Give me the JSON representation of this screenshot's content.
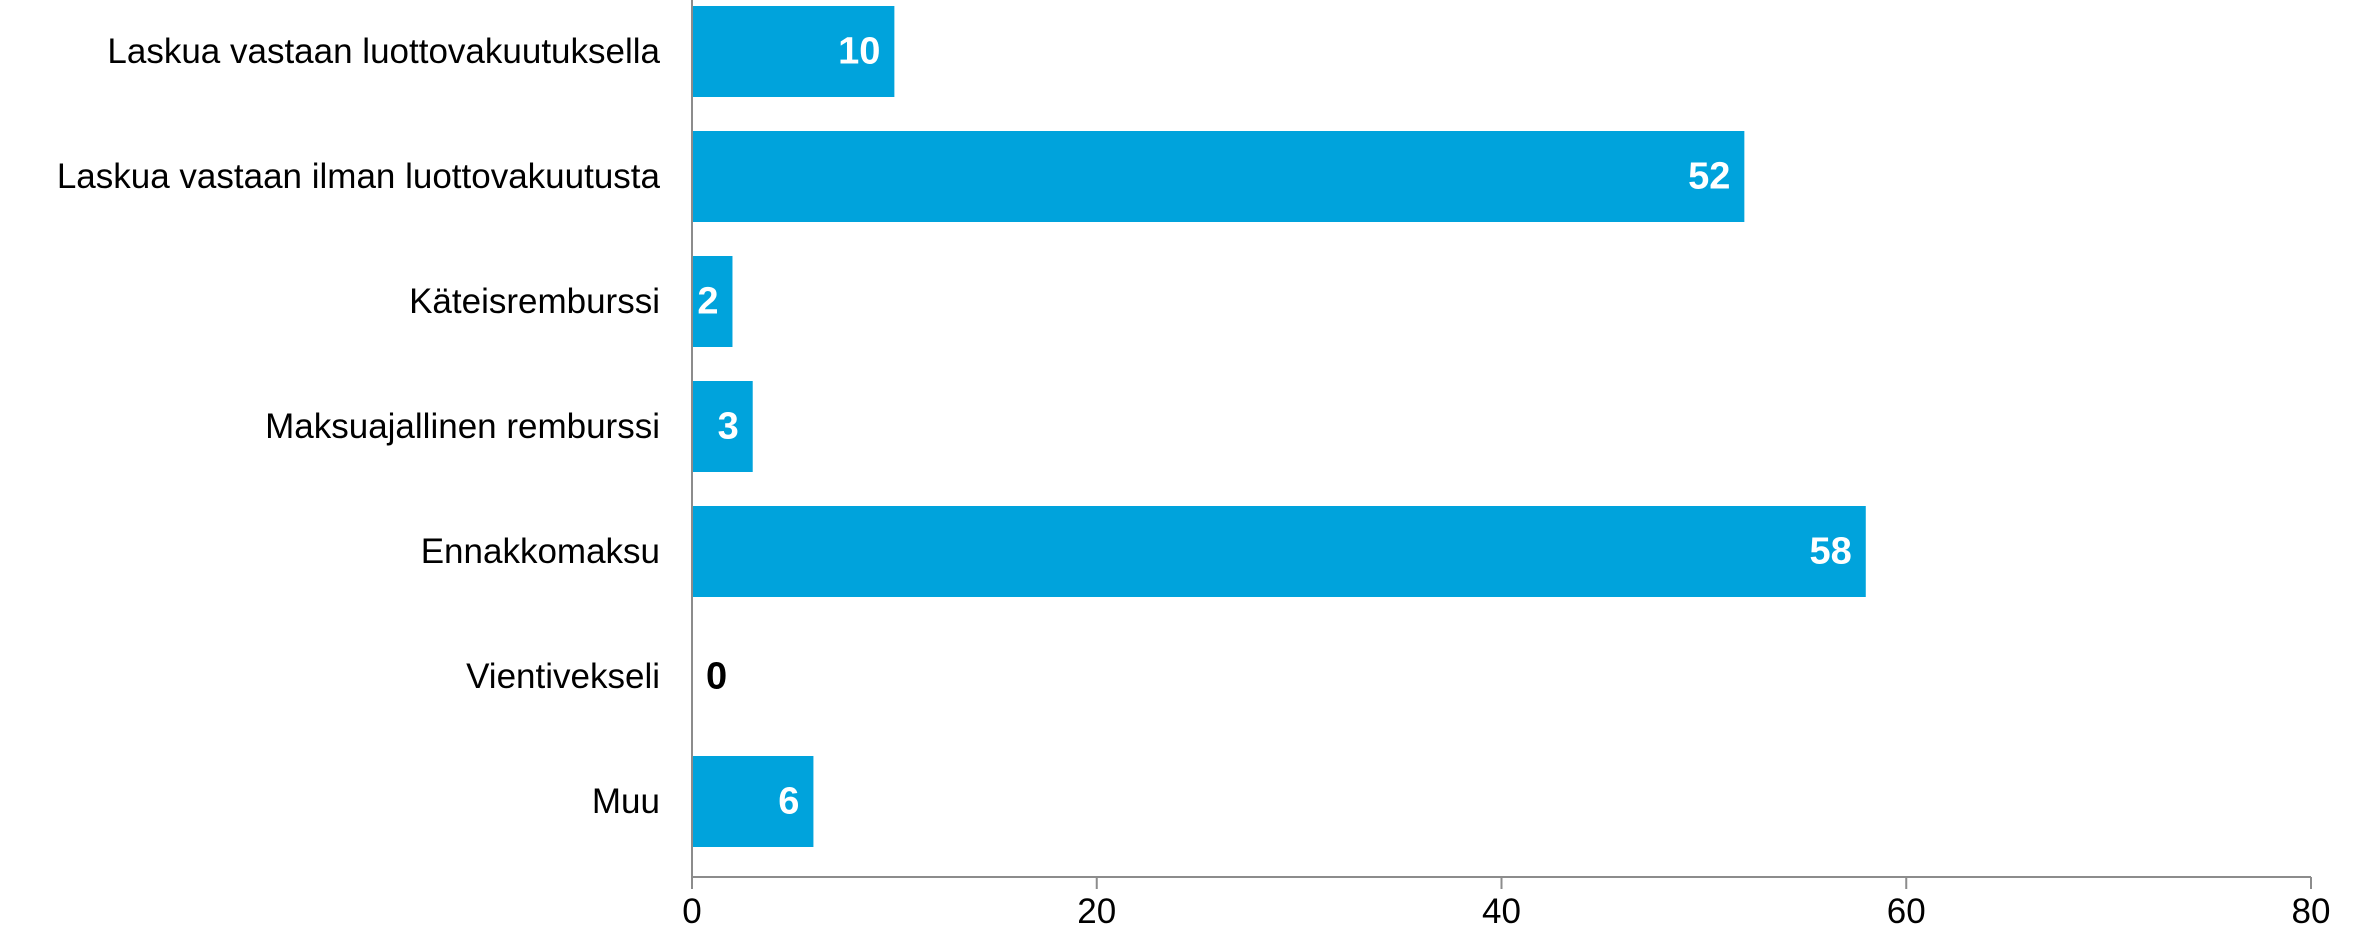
{
  "chart_data": {
    "type": "bar",
    "orientation": "horizontal",
    "categories": [
      "Laskua vastaan luottovakuutuksella",
      "Laskua vastaan ilman luottovakuutusta",
      "Käteisremburssi",
      "Maksuajallinen remburssi",
      "Ennakkomaksu",
      "Vientivekseli",
      "Muu"
    ],
    "series": [
      {
        "values": [
          10,
          52,
          2,
          3,
          58,
          0,
          6
        ],
        "color": "#00A3DC"
      }
    ],
    "data_labels": [
      "10",
      "52",
      "2",
      "3",
      "58",
      "0",
      "6"
    ],
    "xlim": [
      0,
      80
    ],
    "x_ticks": [
      0,
      20,
      40,
      60,
      80
    ],
    "title": "",
    "xlabel": "",
    "ylabel": "",
    "grid": false,
    "legend": "none",
    "colors": {
      "bar": "#00A3DC",
      "axis": "#8C8C8C",
      "text": "#000000",
      "label_inside": "#FFFFFF",
      "label_outside": "#000000"
    }
  }
}
